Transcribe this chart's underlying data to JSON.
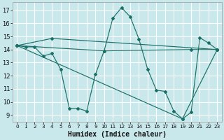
{
  "xlabel": "Humidex (Indice chaleur)",
  "bg_color": "#c8e8ec",
  "line_color": "#1a7068",
  "grid_color": "#ffffff",
  "xlim": [
    -0.5,
    23.5
  ],
  "ylim": [
    8.5,
    17.6
  ],
  "yticks": [
    9,
    10,
    11,
    12,
    13,
    14,
    15,
    16,
    17
  ],
  "xticks": [
    0,
    1,
    2,
    3,
    4,
    5,
    6,
    7,
    8,
    9,
    10,
    11,
    12,
    13,
    14,
    15,
    16,
    17,
    18,
    19,
    20,
    21,
    22,
    23
  ],
  "lines": [
    {
      "x": [
        0,
        1,
        2,
        3,
        4,
        5,
        6,
        7,
        8,
        9,
        10,
        11,
        12,
        13,
        14,
        15,
        16,
        17,
        18,
        19,
        20,
        21,
        22,
        23
      ],
      "y": [
        14.3,
        14.2,
        14.2,
        13.5,
        13.7,
        12.5,
        9.5,
        9.5,
        9.3,
        12.1,
        13.9,
        16.4,
        17.2,
        16.5,
        14.8,
        12.5,
        10.9,
        10.8,
        9.3,
        8.7,
        9.2,
        14.9,
        14.5,
        14.0
      ]
    },
    {
      "x": [
        0,
        10,
        20,
        23
      ],
      "y": [
        14.3,
        13.9,
        14.0,
        14.0
      ]
    },
    {
      "x": [
        0,
        19,
        23
      ],
      "y": [
        14.3,
        8.7,
        14.0
      ]
    },
    {
      "x": [
        0,
        4,
        23
      ],
      "y": [
        14.3,
        14.85,
        14.0
      ]
    }
  ]
}
